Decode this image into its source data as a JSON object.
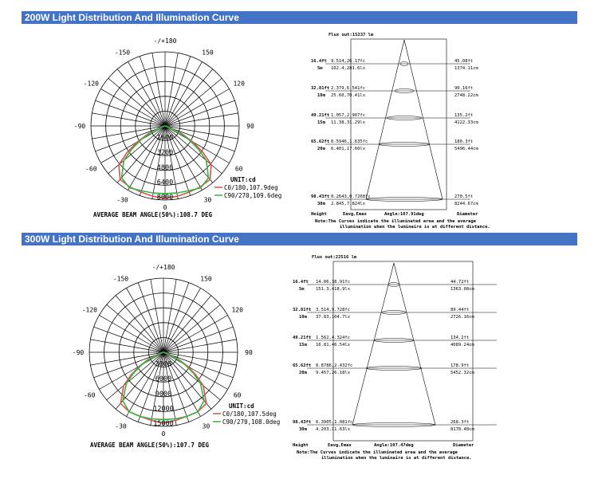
{
  "sections": [
    {
      "title": "200W Light Distribution And Illumination Curve",
      "polar": {
        "angle_labels": [
          "-/+180",
          "-150",
          "150",
          "-120",
          "120",
          "-90",
          "90",
          "-60",
          "60",
          "-30",
          "30",
          "0"
        ],
        "radial_labels": [
          "1600",
          "3200",
          "4800",
          "6400",
          "8000"
        ],
        "unit": "UNIT:cd",
        "legend": [
          "C0/180,107.9deg",
          "C90/270,109.6deg"
        ],
        "beam_angle": "AVERAGE BEAM ANGLE(50%):108.7 DEG"
      },
      "illum": {
        "flux": "Flux out:15237 lm",
        "rows": [
          {
            "h1": "16.4ft",
            "h2": "5m",
            "l1": "9.514,26.17fc",
            "l2": "102.4,281.6lx",
            "r1": "45.08ft",
            "r2": "1374.11cm"
          },
          {
            "h1": "32.81ft",
            "h2": "10m",
            "l1": "2.379,6.541fc",
            "l2": "25.60,70.41lx",
            "r1": "90.16ft",
            "r2": "2748.22cm"
          },
          {
            "h1": "49.21ft",
            "h2": "15m",
            "l1": "1.057,2.907fc",
            "l2": "11.38,31.29lx",
            "r1": "135.2ft",
            "r2": "4122.33cm"
          },
          {
            "h1": "65.62ft",
            "h2": "20m",
            "l1": "0.5946,1.635fc",
            "l2": "6.401,17.60lx",
            "r1": "180.3ft",
            "r2": "5496.44cm"
          },
          {
            "h1": "98.43ft",
            "h2": "30m",
            "l1": "0.2643,0.7268fc",
            "l2": "2.845,7.824lx",
            "r1": "270.5ft",
            "r2": "8244.67cm"
          }
        ],
        "footer": {
          "height": "Height",
          "eavg": "Eavg,Emax",
          "angle": "Angle:107.91deg",
          "diameter": "Diameter"
        },
        "note1": "Note:The Curves indicate the illuminated area and the average",
        "note2": "illumination when the luminaire is at different distance."
      }
    },
    {
      "title": "300W Light Distribution And Illumination Curve",
      "polar": {
        "angle_labels": [
          "-/+180",
          "-150",
          "150",
          "-120",
          "120",
          "-90",
          "90",
          "-60",
          "60",
          "-30",
          "30",
          "0"
        ],
        "radial_labels": [
          "3000",
          "6000",
          "9000",
          "12000",
          "15000"
        ],
        "unit": "UNIT:cd",
        "legend": [
          "C0/180,107.5deg",
          "C90/270,108.0deg"
        ],
        "beam_angle": "AVERAGE BEAM ANGLE(50%):107.7 DEG"
      },
      "illum": {
        "flux": "Flux out:22516 lm",
        "rows": [
          {
            "h1": "16.4ft",
            "h2": "5m",
            "l1": "14.06,38.91fc",
            "l2": "151.3,418.9lx",
            "r1": "44.72ft",
            "r2": "1363.08cm"
          },
          {
            "h1": "32.81ft",
            "h2": "10m",
            "l1": "3.514,9.728fc",
            "l2": "37.83,104.7lx",
            "r1": "89.44ft",
            "r2": "2726.16cm"
          },
          {
            "h1": "49.21ft",
            "h2": "15m",
            "l1": "1.562,4.324fc",
            "l2": "16.81,46.54lx",
            "r1": "134.2ft",
            "r2": "4089.24cm"
          },
          {
            "h1": "65.62ft",
            "h2": "20m",
            "l1": "0.8786,2.432fc",
            "l2": "9.457,26.18lx",
            "r1": "178.9ft",
            "r2": "5452.32cm"
          },
          {
            "h1": "98.43ft",
            "h2": "30m",
            "l1": "0.3905,1.081fc",
            "l2": "4.203,11.63lx",
            "r1": "268.3ft",
            "r2": "8178.48cm"
          }
        ],
        "footer": {
          "height": "Height",
          "eavg": "Eavg,Emax",
          "angle": "Angle:107.47deg",
          "diameter": "Diameter"
        },
        "note1": "Note:The Curves indicate the illuminated area and the average",
        "note2": "illumination when the luminaire is at different distance."
      }
    }
  ],
  "chart_data": [
    {
      "type": "polar",
      "series": [
        {
          "name": "C0/180,107.9deg",
          "color": "#d9534f",
          "angles": [
            0,
            10,
            20,
            30,
            40,
            50,
            55,
            60,
            65,
            70,
            80,
            90
          ],
          "values": [
            7800,
            7700,
            7600,
            7600,
            7550,
            6500,
            5000,
            3500,
            2000,
            800,
            100,
            0
          ]
        },
        {
          "name": "C90/270,109.6deg",
          "color": "#3cb043",
          "angles": [
            0,
            10,
            20,
            30,
            40,
            50,
            55,
            60,
            65,
            70,
            80,
            90
          ],
          "values": [
            7300,
            7350,
            7450,
            7700,
            7300,
            5800,
            4400,
            3000,
            1700,
            700,
            100,
            0
          ]
        }
      ],
      "rmax": 8000
    },
    {
      "type": "polar",
      "series": [
        {
          "name": "C0/180,107.5deg",
          "color": "#d9534f",
          "angles": [
            0,
            10,
            20,
            30,
            40,
            50,
            55,
            60,
            65,
            70,
            80,
            90
          ],
          "values": [
            14300,
            14000,
            13800,
            13900,
            13500,
            10500,
            8000,
            5600,
            3300,
            1200,
            200,
            0
          ]
        },
        {
          "name": "C90/270,108.0deg",
          "color": "#3cb043",
          "angles": [
            0,
            10,
            20,
            30,
            40,
            50,
            55,
            60,
            65,
            70,
            80,
            90
          ],
          "values": [
            13600,
            13700,
            13800,
            13900,
            12800,
            9800,
            7400,
            5100,
            2900,
            1000,
            150,
            0
          ]
        }
      ],
      "rmax": 15000
    }
  ]
}
